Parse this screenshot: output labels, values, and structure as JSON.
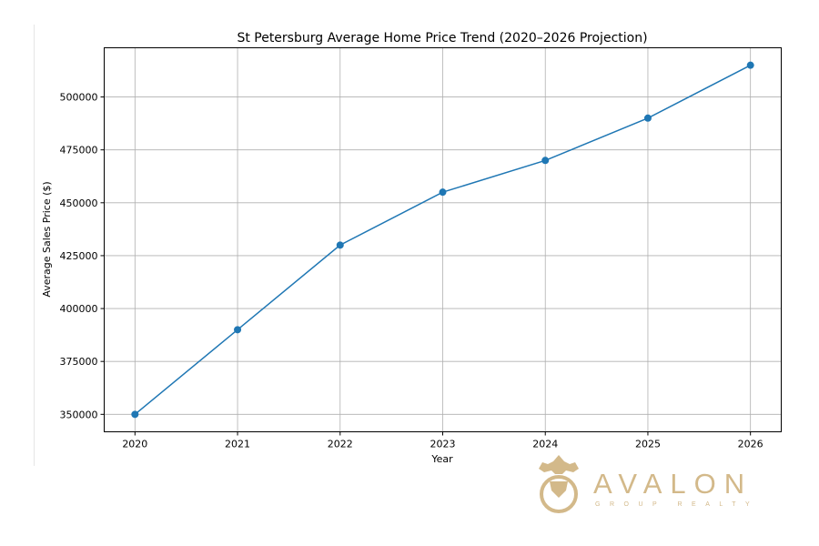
{
  "chart_data": {
    "type": "line",
    "title": "St Petersburg Average Home Price Trend (2020–2026 Projection)",
    "xlabel": "Year",
    "ylabel": "Average Sales Price ($)",
    "x": [
      2020,
      2021,
      2022,
      2023,
      2024,
      2025,
      2026
    ],
    "series": [
      {
        "values": [
          350000,
          390000,
          430000,
          455000,
          470000,
          490000,
          515000
        ],
        "color": "#1f77b4",
        "marker": "circle"
      }
    ],
    "xlim": [
      2019.7,
      2026.3
    ],
    "ylim": [
      341750,
      523250
    ],
    "xticks": [
      "2020",
      "2021",
      "2022",
      "2023",
      "2024",
      "2025",
      "2026"
    ],
    "yticks": [
      "350000",
      "375000",
      "400000",
      "425000",
      "450000",
      "475000",
      "500000"
    ],
    "grid": true
  },
  "logo": {
    "name": "AVALON",
    "tagline": "GROUP REALTY",
    "color": "#d3b98a"
  }
}
